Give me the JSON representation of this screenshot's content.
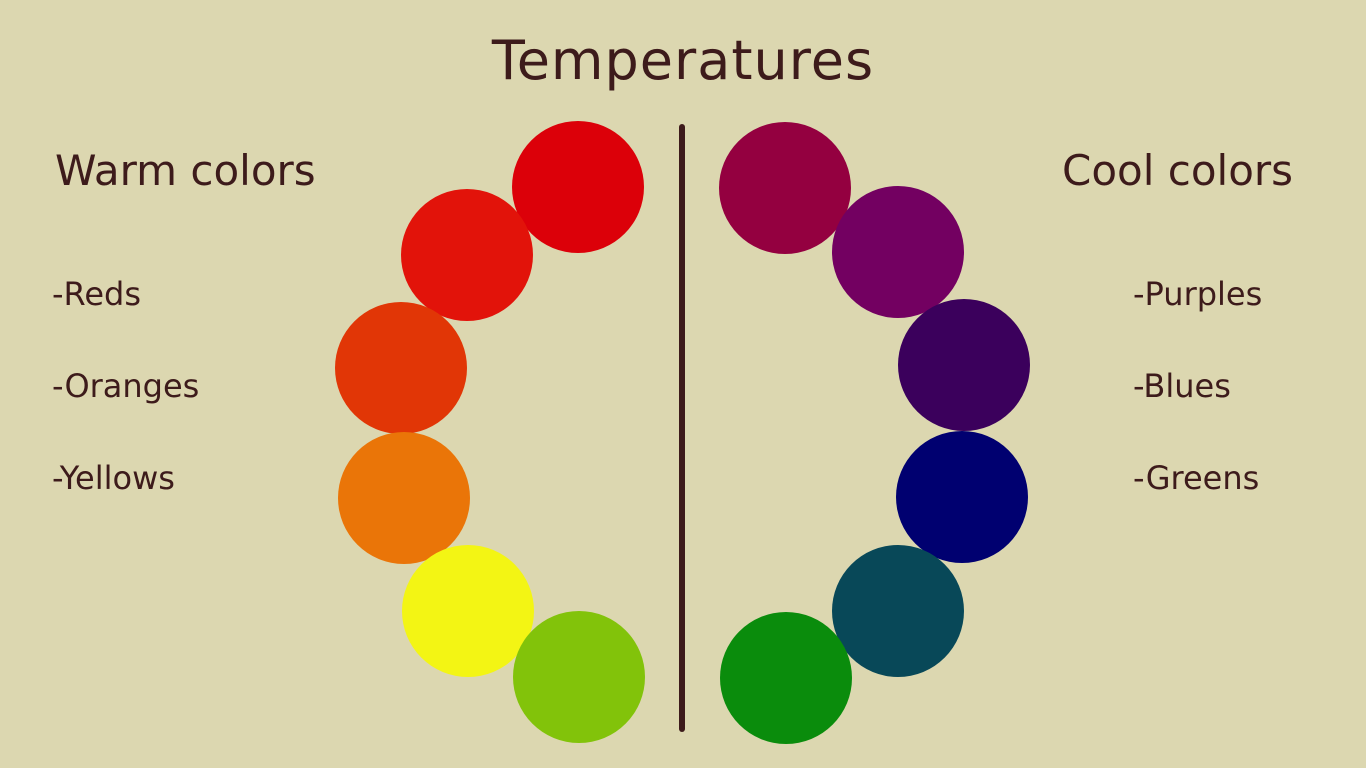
{
  "title": "Temperatures",
  "warm": {
    "heading": "Warm colors",
    "items": [
      "-Reds",
      "-Oranges",
      "-Yellows"
    ],
    "swatches": [
      "#dc0009",
      "#e2130a",
      "#e13606",
      "#ea7508",
      "#f3f514",
      "#82c30a"
    ]
  },
  "cool": {
    "heading": "Cool colors",
    "items": [
      "-Purples",
      "-Blues",
      "-Greens"
    ],
    "swatches": [
      "#940040",
      "#730061",
      "#3b005c",
      "#000070",
      "#084858",
      "#0a8c0c"
    ]
  },
  "colors": {
    "background": "#dcd7b0",
    "text": "#3d1b1b"
  }
}
